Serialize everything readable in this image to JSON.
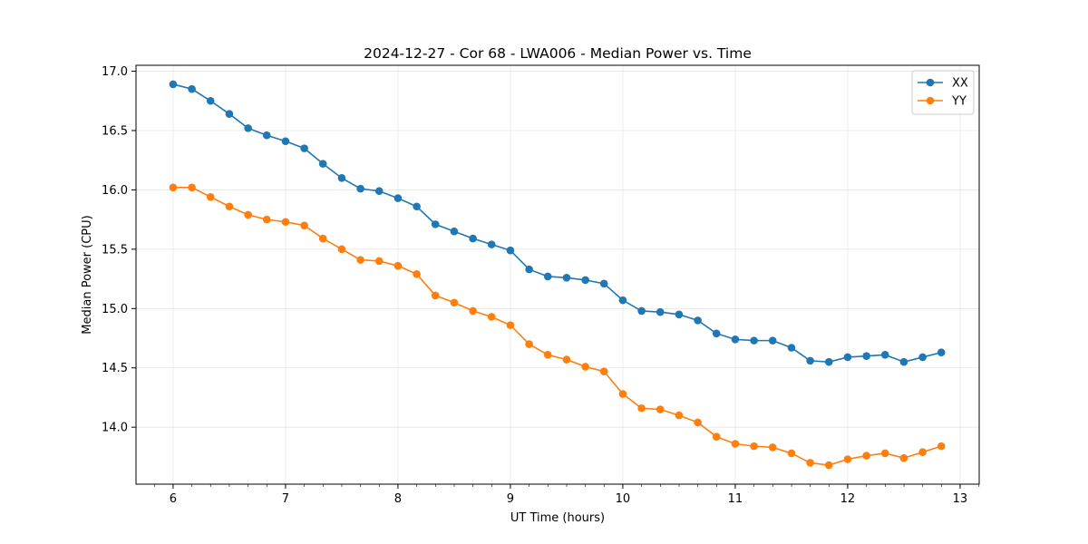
{
  "chart_data": {
    "type": "line",
    "title": "2024-12-27 - Cor 68 - LWA006 - Median Power vs. Time",
    "xlabel": "UT Time (hours)",
    "ylabel": "Median Power (CPU)",
    "xlim": [
      5.67,
      13.17
    ],
    "ylim": [
      13.52,
      17.05
    ],
    "xticks": [
      6,
      7,
      8,
      9,
      10,
      11,
      12,
      13
    ],
    "xtick_labels": [
      "6",
      "7",
      "8",
      "9",
      "10",
      "11",
      "12",
      "13"
    ],
    "yticks": [
      14.0,
      14.5,
      15.0,
      15.5,
      16.0,
      16.5,
      17.0
    ],
    "ytick_labels": [
      "14.0",
      "14.5",
      "15.0",
      "15.5",
      "16.0",
      "16.5",
      "17.0"
    ],
    "x_minor_step": 0.1667,
    "grid": true,
    "legend_position": "top-right",
    "x": [
      6.0,
      6.167,
      6.333,
      6.5,
      6.667,
      6.833,
      7.0,
      7.167,
      7.333,
      7.5,
      7.667,
      7.833,
      8.0,
      8.167,
      8.333,
      8.5,
      8.667,
      8.833,
      9.0,
      9.167,
      9.333,
      9.5,
      9.667,
      9.833,
      10.0,
      10.167,
      10.333,
      10.5,
      10.667,
      10.833,
      11.0,
      11.167,
      11.333,
      11.5,
      11.667,
      11.833,
      12.0,
      12.167,
      12.333,
      12.5,
      12.667,
      12.833
    ],
    "series": [
      {
        "name": "XX",
        "color": "#1f77b4",
        "values": [
          16.89,
          16.85,
          16.75,
          16.64,
          16.52,
          16.46,
          16.41,
          16.35,
          16.22,
          16.1,
          16.01,
          15.99,
          15.93,
          15.86,
          15.71,
          15.65,
          15.59,
          15.54,
          15.49,
          15.33,
          15.27,
          15.26,
          15.24,
          15.21,
          15.07,
          14.98,
          14.97,
          14.95,
          14.9,
          14.79,
          14.74,
          14.73,
          14.73,
          14.67,
          14.56,
          14.55,
          14.59,
          14.6,
          14.61,
          14.55,
          14.59,
          14.63
        ]
      },
      {
        "name": "YY",
        "color": "#ff7f0e",
        "values": [
          16.02,
          16.02,
          15.94,
          15.86,
          15.79,
          15.75,
          15.73,
          15.7,
          15.59,
          15.5,
          15.41,
          15.4,
          15.36,
          15.29,
          15.11,
          15.05,
          14.98,
          14.93,
          14.86,
          14.7,
          14.61,
          14.57,
          14.51,
          14.47,
          14.28,
          14.16,
          14.15,
          14.1,
          14.04,
          13.92,
          13.86,
          13.84,
          13.83,
          13.78,
          13.7,
          13.68,
          13.73,
          13.76,
          13.78,
          13.74,
          13.79,
          13.84
        ]
      }
    ]
  }
}
